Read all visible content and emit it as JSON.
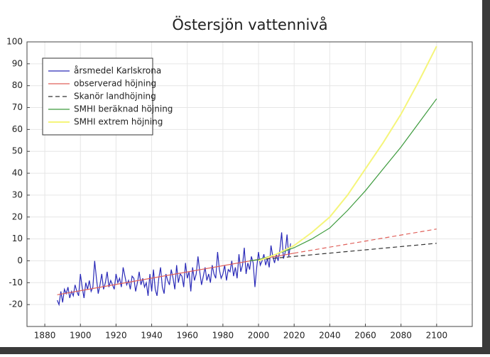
{
  "chart_data": {
    "type": "line",
    "title": "Östersjön vattennivå",
    "xlim": [
      1870,
      2120
    ],
    "xticks": [
      1880,
      1900,
      1920,
      1940,
      1960,
      1980,
      2000,
      2020,
      2040,
      2060,
      2080,
      2100
    ],
    "ylim": [
      -30,
      100
    ],
    "yticks": [
      -20,
      -10,
      0,
      10,
      20,
      30,
      40,
      50,
      60,
      70,
      80,
      90,
      100
    ],
    "grid": true,
    "legend": "top-left",
    "series": [
      {
        "name": "årsmedel Karlskrona",
        "color": "#2a2ab8",
        "line_style": [
          "solid"
        ],
        "x": [
          1887,
          1888,
          1889,
          1890,
          1891,
          1892,
          1893,
          1894,
          1895,
          1896,
          1897,
          1898,
          1899,
          1900,
          1901,
          1902,
          1903,
          1904,
          1905,
          1906,
          1907,
          1908,
          1909,
          1910,
          1911,
          1912,
          1913,
          1914,
          1915,
          1916,
          1917,
          1918,
          1919,
          1920,
          1921,
          1922,
          1923,
          1924,
          1925,
          1926,
          1927,
          1928,
          1929,
          1930,
          1931,
          1932,
          1933,
          1934,
          1935,
          1936,
          1937,
          1938,
          1939,
          1940,
          1941,
          1942,
          1943,
          1944,
          1945,
          1946,
          1947,
          1948,
          1949,
          1950,
          1951,
          1952,
          1953,
          1954,
          1955,
          1956,
          1957,
          1958,
          1959,
          1960,
          1961,
          1962,
          1963,
          1964,
          1965,
          1966,
          1967,
          1968,
          1969,
          1970,
          1971,
          1972,
          1973,
          1974,
          1975,
          1976,
          1977,
          1978,
          1979,
          1980,
          1981,
          1982,
          1983,
          1984,
          1985,
          1986,
          1987,
          1988,
          1989,
          1990,
          1991,
          1992,
          1993,
          1994,
          1995,
          1996,
          1997,
          1998,
          1999,
          2000,
          2001,
          2002,
          2003,
          2004,
          2005,
          2006,
          2007,
          2008,
          2009,
          2010,
          2011,
          2012,
          2013,
          2014,
          2015,
          2016,
          2017,
          2018
        ],
        "values": [
          -18,
          -20,
          -14,
          -19,
          -13,
          -15,
          -12,
          -17,
          -14,
          -16,
          -11,
          -14,
          -16,
          -6,
          -12,
          -17,
          -10,
          -13,
          -9,
          -14,
          -12,
          0,
          -8,
          -15,
          -11,
          -6,
          -13,
          -10,
          -5,
          -12,
          -9,
          -11,
          -13,
          -6,
          -10,
          -8,
          -12,
          -3,
          -7,
          -11,
          -9,
          -13,
          -7,
          -8,
          -14,
          -10,
          -5,
          -11,
          -8,
          -12,
          -10,
          -16,
          -6,
          -14,
          -4,
          -13,
          -16,
          -8,
          -3,
          -12,
          -15,
          -6,
          -9,
          -11,
          -4,
          -8,
          -13,
          -2,
          -10,
          -6,
          -7,
          -12,
          -1,
          -8,
          -5,
          -14,
          -3,
          -9,
          -6,
          2,
          -5,
          -11,
          -7,
          -3,
          -9,
          -6,
          -10,
          -2,
          -6,
          -8,
          4,
          -4,
          -8,
          -6,
          -2,
          -9,
          -4,
          -5,
          0,
          -7,
          -3,
          -8,
          3,
          -5,
          -2,
          6,
          -6,
          -1,
          -4,
          2,
          -1,
          -12,
          -3,
          4,
          -2,
          0,
          3,
          -2,
          1,
          -3,
          7,
          2,
          -1,
          3,
          0,
          5,
          13,
          1,
          4,
          12,
          2,
          8
        ]
      },
      {
        "name": "observerad höjning",
        "color": "#e0605a",
        "line_style": [
          "solid",
          "dashed"
        ],
        "x": [
          1887,
          2020,
          2100
        ],
        "values": [
          -15.5,
          3.5,
          14.5
        ]
      },
      {
        "name": "Skanör landhöjning",
        "color": "#333333",
        "line_style": [
          "dashed"
        ],
        "x": [
          2000,
          2100
        ],
        "values": [
          0.5,
          8
        ]
      },
      {
        "name": "SMHI beräknad höjning",
        "color": "#3c9a3c",
        "line_style": [
          "solid"
        ],
        "x": [
          1995,
          2000,
          2010,
          2020,
          2030,
          2040,
          2050,
          2060,
          2070,
          2080,
          2090,
          2100
        ],
        "values": [
          0,
          0.5,
          3,
          6,
          10,
          15,
          23,
          32,
          42,
          52,
          63,
          74
        ]
      },
      {
        "name": "SMHI extrem höjning",
        "color": "#f5f57a",
        "line_style": [
          "solid"
        ],
        "x": [
          2000,
          2010,
          2020,
          2030,
          2040,
          2050,
          2060,
          2070,
          2080,
          2090,
          2100
        ],
        "values": [
          0,
          3,
          7,
          13,
          20,
          30,
          42,
          54,
          67,
          82,
          98
        ]
      }
    ]
  }
}
